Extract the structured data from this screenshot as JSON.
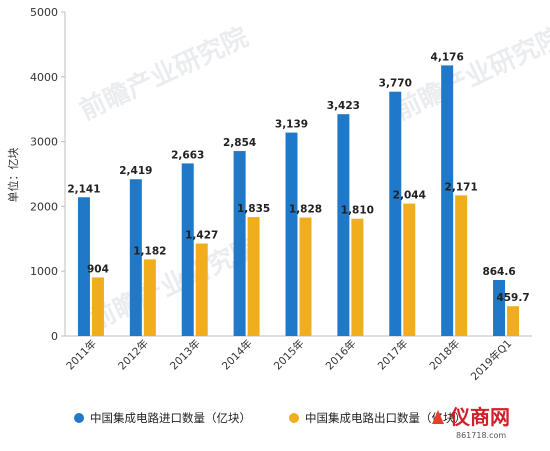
{
  "chart_data": {
    "type": "bar",
    "ylabel": "单位：亿块",
    "ylim": [
      0,
      5000
    ],
    "yticks": [
      0,
      1000,
      2000,
      3000,
      4000,
      5000
    ],
    "grid": false,
    "legend": "bottom",
    "categories": [
      "2011年",
      "2012年",
      "2013年",
      "2014年",
      "2015年",
      "2016年",
      "2017年",
      "2018年",
      "2019年Q1"
    ],
    "series": [
      {
        "name": "中国集成电路进口数量（亿块）",
        "color": "#1f78c8",
        "values": [
          2141,
          2419,
          2663,
          2854,
          3139,
          3423,
          3770,
          4176,
          864.6
        ],
        "labels": [
          "2,141",
          "2,419",
          "2,663",
          "2,854",
          "3,139",
          "3,423",
          "3,770",
          "4,176",
          "864.6"
        ]
      },
      {
        "name": "中国集成电路出口数量（亿块）",
        "color": "#f0ad1e",
        "values": [
          904,
          1182,
          1427,
          1835,
          1828,
          1810,
          2044,
          2171,
          459.7
        ],
        "labels": [
          "904",
          "1,182",
          "1,427",
          "1,835",
          "1,828",
          "1,810",
          "2,044",
          "2,171",
          "459.7"
        ]
      }
    ]
  },
  "watermark": {
    "text": "前瞻产业研究院"
  },
  "logo": {
    "text": "仪商网",
    "url_text": "861718.com"
  }
}
